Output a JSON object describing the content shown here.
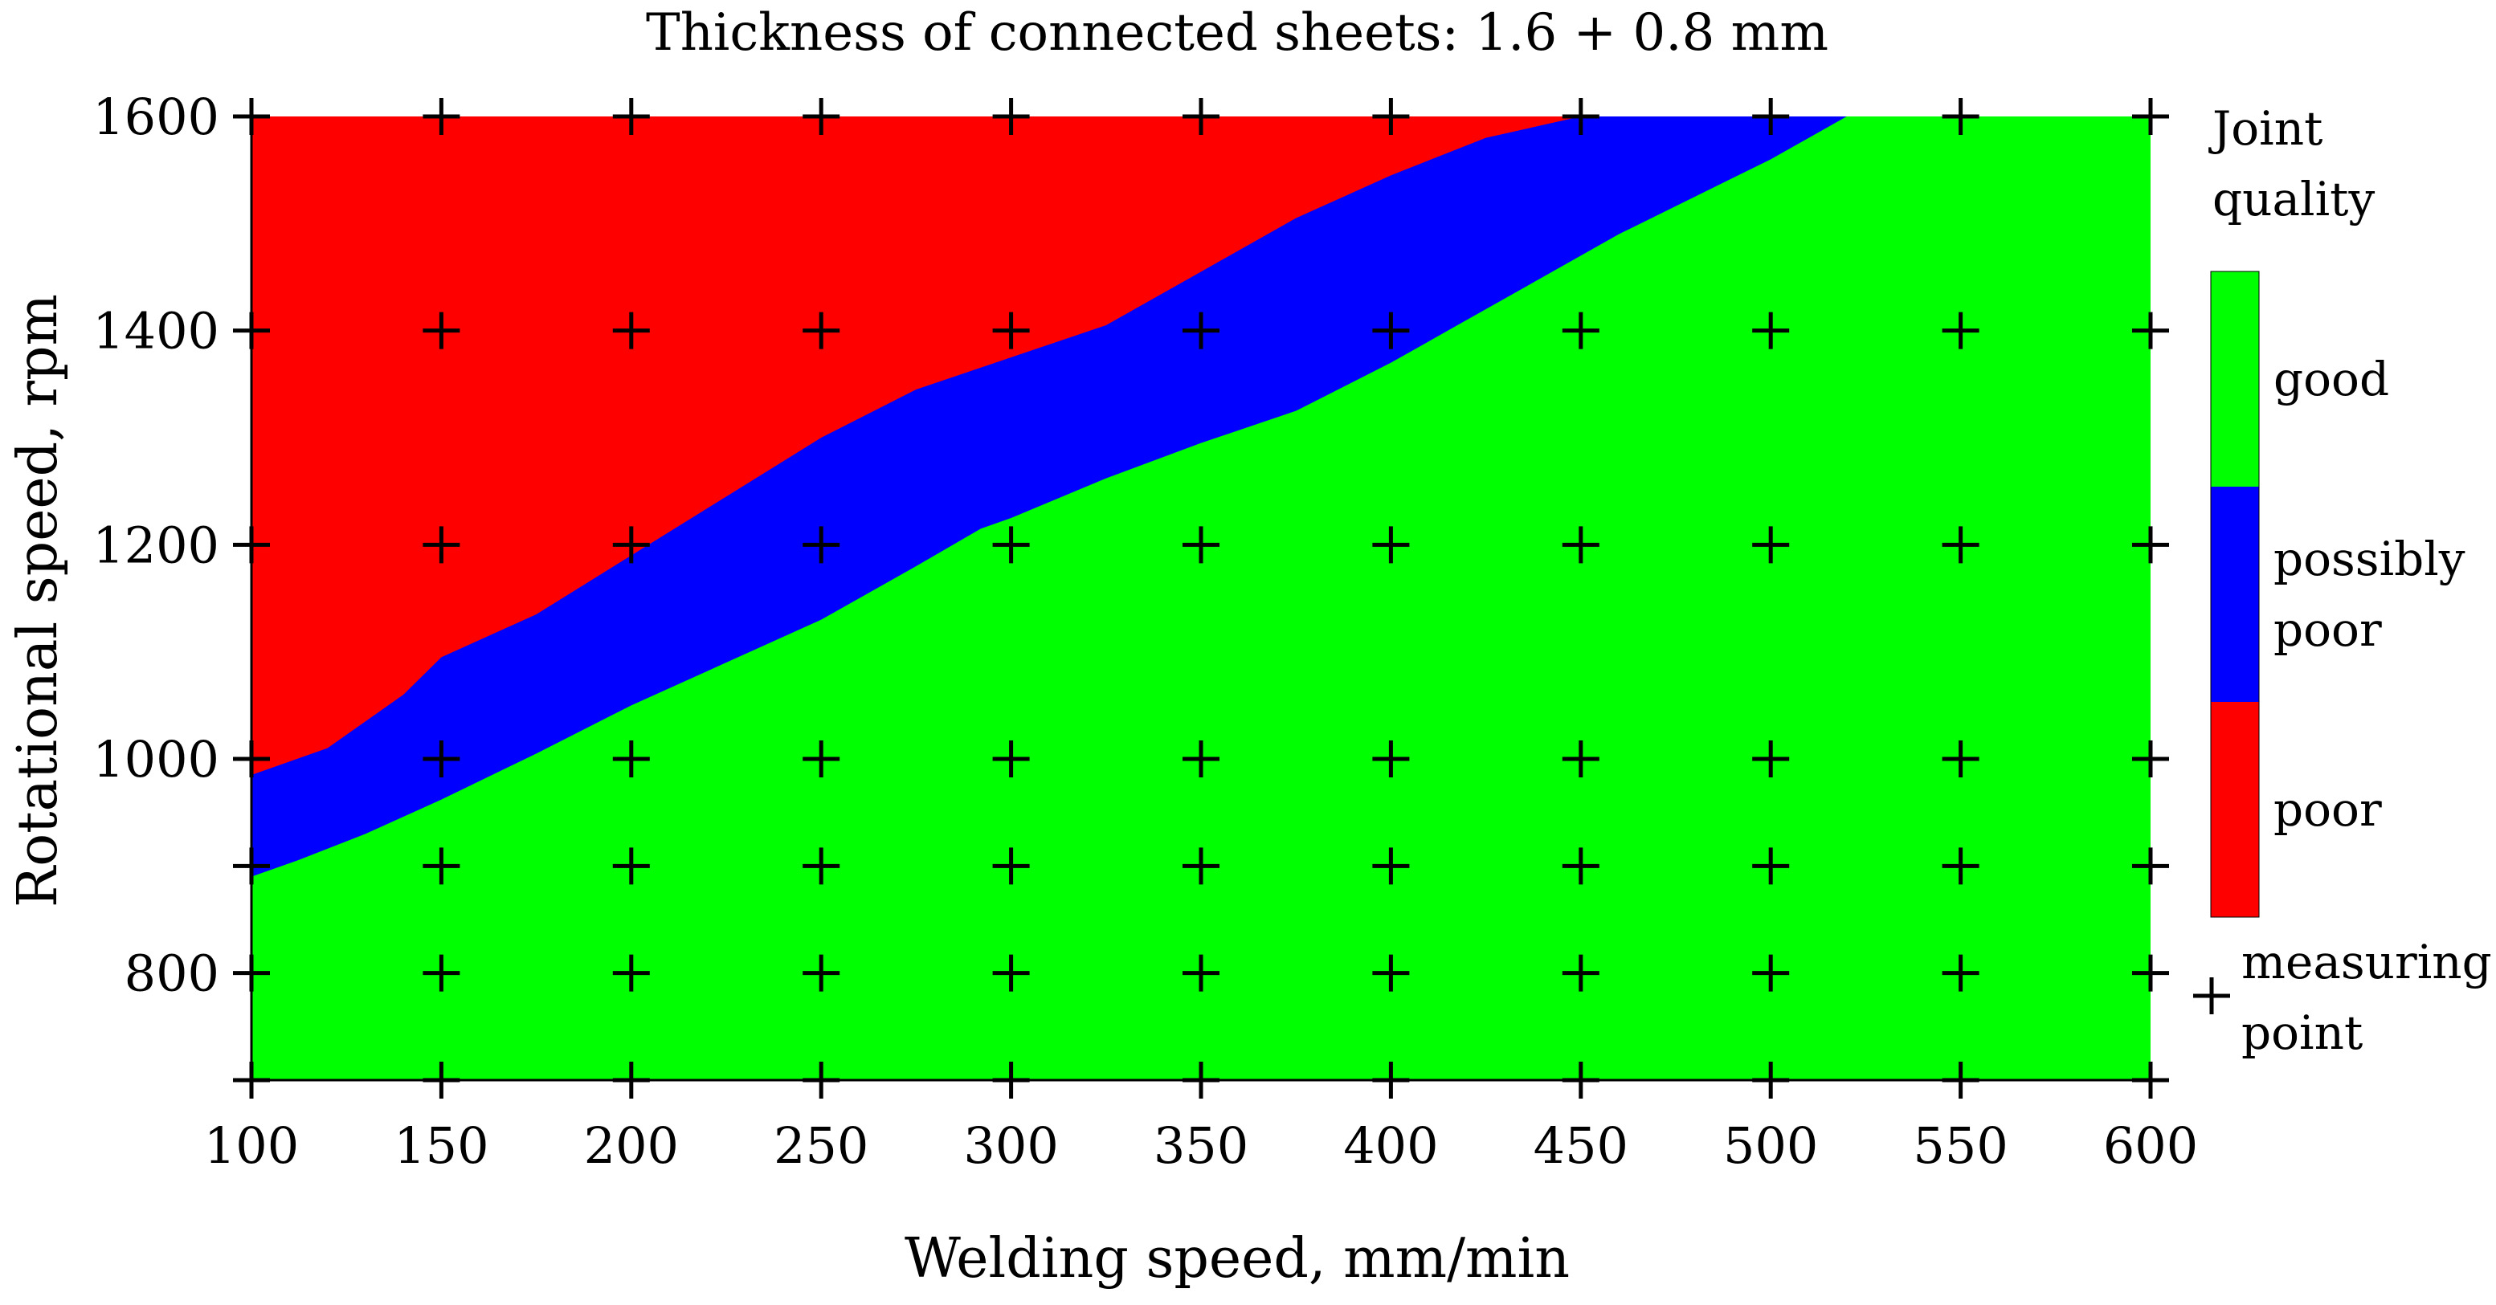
{
  "chart_data": {
    "type": "heatmap",
    "title": "Thickness of connected sheets: 1.6 + 0.8 mm",
    "xlabel": "Welding speed, mm/min",
    "ylabel": "Rotational speed, rpm",
    "xlim": [
      100,
      600
    ],
    "ylim": [
      700,
      1600
    ],
    "x_ticks": [
      100,
      150,
      200,
      250,
      300,
      350,
      400,
      450,
      500,
      550,
      600
    ],
    "y_ticks": [
      800,
      1000,
      1200,
      1400,
      1600
    ],
    "grid": false,
    "legend_title_lines": [
      "Joint",
      "quality"
    ],
    "legend": [
      {
        "key": "good",
        "lines": [
          "good"
        ],
        "color": "#00ff00"
      },
      {
        "key": "possibly_poor",
        "lines": [
          "possibly",
          "poor"
        ],
        "color": "#0000ff"
      },
      {
        "key": "poor",
        "lines": [
          "poor"
        ],
        "color": "#ff0000"
      }
    ],
    "marker_legend": {
      "symbol": "+",
      "lines": [
        "measuring",
        "point"
      ]
    },
    "region_colors": {
      "good": "#00ff00",
      "possibly_poor": "#0000ff",
      "poor": "#ff0000"
    },
    "boundaries": {
      "poor_upper": [
        [
          100,
          985
        ],
        [
          120,
          1010
        ],
        [
          140,
          1060
        ],
        [
          150,
          1095
        ],
        [
          175,
          1135
        ],
        [
          200,
          1190
        ],
        [
          225,
          1245
        ],
        [
          250,
          1300
        ],
        [
          275,
          1345
        ],
        [
          300,
          1375
        ],
        [
          325,
          1405
        ],
        [
          350,
          1455
        ],
        [
          375,
          1505
        ],
        [
          400,
          1545
        ],
        [
          425,
          1580
        ],
        [
          450,
          1600
        ]
      ],
      "possibly_poor_upper": [
        [
          100,
          890
        ],
        [
          112,
          905
        ],
        [
          130,
          930
        ],
        [
          150,
          962
        ],
        [
          175,
          1005
        ],
        [
          200,
          1050
        ],
        [
          225,
          1090
        ],
        [
          250,
          1130
        ],
        [
          275,
          1180
        ],
        [
          292,
          1215
        ],
        [
          300,
          1225
        ],
        [
          325,
          1262
        ],
        [
          350,
          1295
        ],
        [
          375,
          1325
        ],
        [
          400,
          1370
        ],
        [
          415,
          1400
        ],
        [
          440,
          1450
        ],
        [
          460,
          1490
        ],
        [
          480,
          1525
        ],
        [
          500,
          1560
        ],
        [
          515,
          1590
        ],
        [
          520,
          1600
        ]
      ]
    },
    "measuring_points": [
      {
        "x": 100,
        "y": [
          700,
          800,
          900,
          1000,
          1200,
          1400,
          1600
        ]
      },
      {
        "x": 150,
        "y": [
          700,
          800,
          900,
          1000,
          1200,
          1400,
          1600
        ]
      },
      {
        "x": 200,
        "y": [
          700,
          800,
          900,
          1000,
          1200,
          1400,
          1600
        ]
      },
      {
        "x": 250,
        "y": [
          700,
          800,
          900,
          1000,
          1200,
          1400,
          1600
        ]
      },
      {
        "x": 300,
        "y": [
          700,
          800,
          900,
          1000,
          1200,
          1400,
          1600
        ]
      },
      {
        "x": 350,
        "y": [
          700,
          800,
          900,
          1000,
          1200,
          1400,
          1600
        ]
      },
      {
        "x": 400,
        "y": [
          700,
          800,
          900,
          1000,
          1200,
          1400,
          1600
        ]
      },
      {
        "x": 450,
        "y": [
          700,
          800,
          900,
          1000,
          1200,
          1400,
          1600
        ]
      },
      {
        "x": 500,
        "y": [
          700,
          800,
          900,
          1000,
          1200,
          1400,
          1600
        ]
      },
      {
        "x": 550,
        "y": [
          700,
          800,
          900,
          1000,
          1200,
          1400,
          1600
        ]
      },
      {
        "x": 600,
        "y": [
          700,
          800,
          900,
          1000,
          1200,
          1400,
          1600
        ]
      }
    ]
  }
}
